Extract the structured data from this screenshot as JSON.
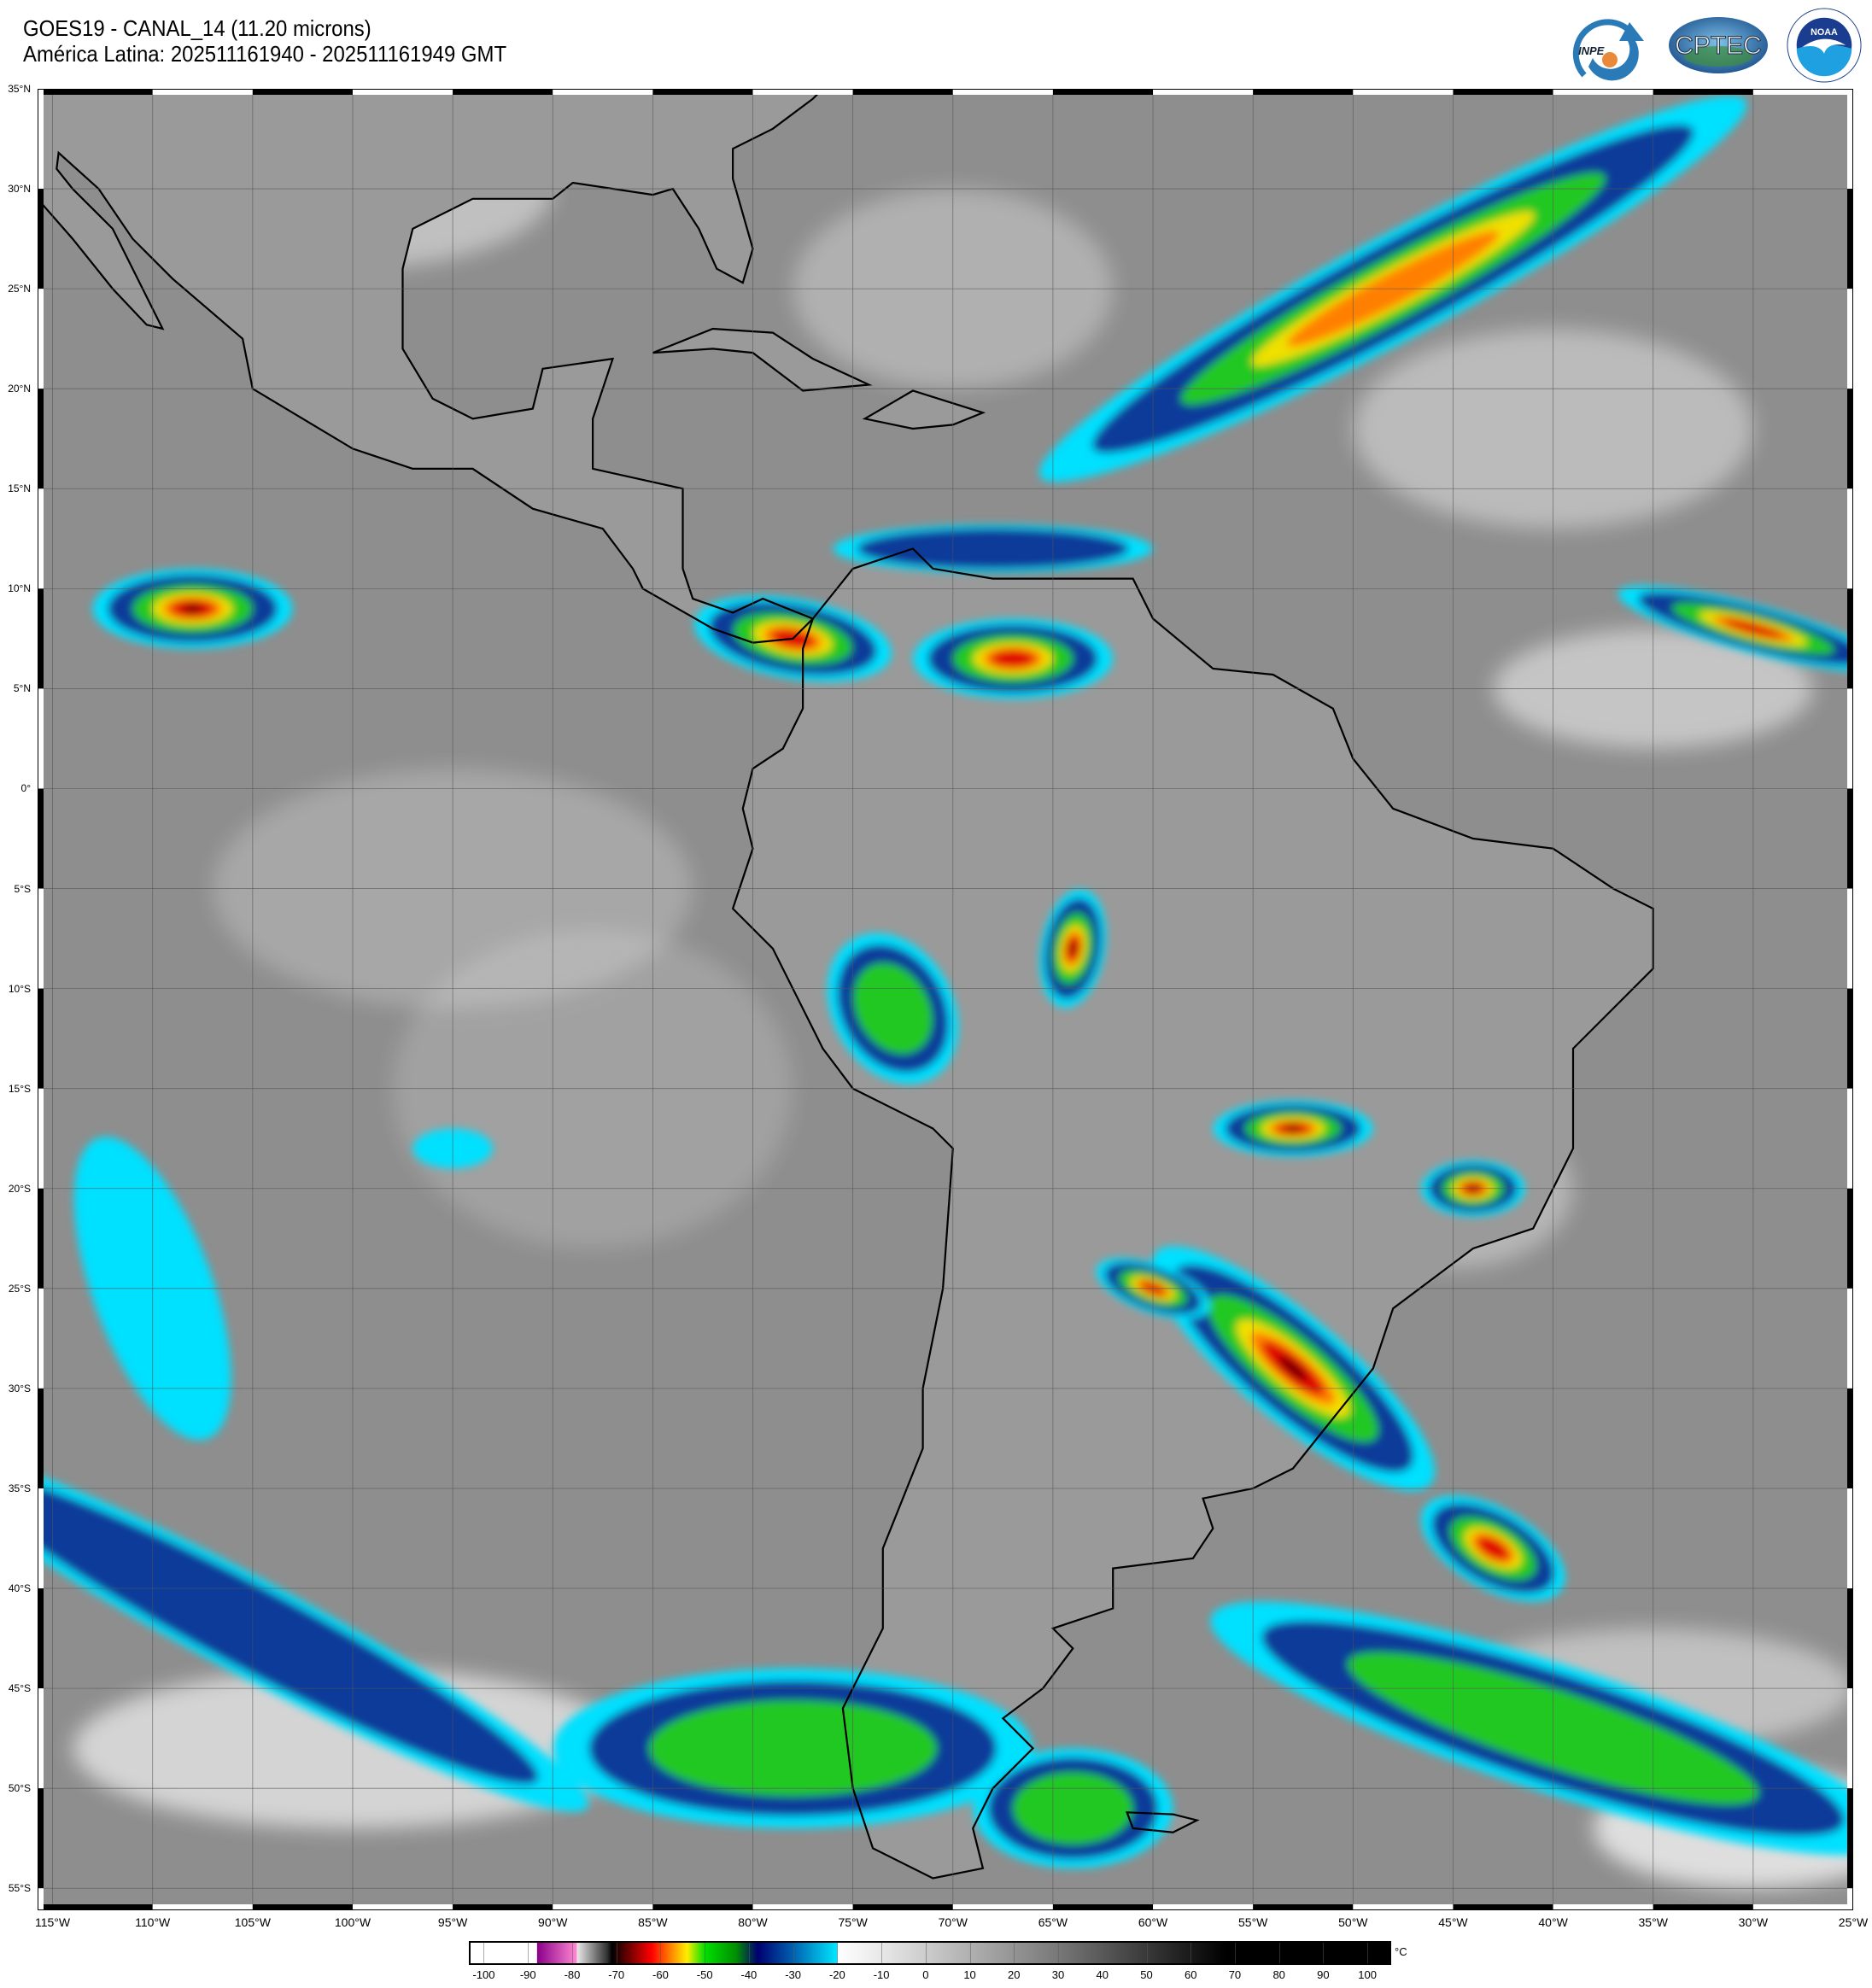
{
  "header": {
    "title": "GOES19 - CANAL_14 (11.20 microns)",
    "subtitle": "América Latina: 202511161940 - 202511161949 GMT"
  },
  "logos": {
    "inpe": "INPE",
    "cptec": "CPTEC",
    "noaa": "NOAA",
    "noaa_ring": "NATIONAL OCEANIC AND ATMOSPHERIC ADMINISTRATION · U.S. DEPARTMENT OF COMMERCE"
  },
  "map": {
    "lat_labels": [
      "35°N",
      "30°N",
      "25°N",
      "20°N",
      "15°N",
      "10°N",
      "5°N",
      "0°",
      "5°S",
      "10°S",
      "15°S",
      "20°S",
      "25°S",
      "30°S",
      "35°S",
      "40°S",
      "45°S",
      "50°S",
      "55°S"
    ],
    "lat_values": [
      35,
      30,
      25,
      20,
      15,
      10,
      5,
      0,
      -5,
      -10,
      -15,
      -20,
      -25,
      -30,
      -35,
      -40,
      -45,
      -50,
      -55
    ],
    "lon_labels": [
      "115°W",
      "110°W",
      "105°W",
      "100°W",
      "95°W",
      "90°W",
      "85°W",
      "80°W",
      "75°W",
      "70°W",
      "65°W",
      "60°W",
      "55°W",
      "50°W",
      "45°W",
      "40°W",
      "35°W",
      "30°W",
      "25°W"
    ],
    "lon_values": [
      -115,
      -110,
      -105,
      -100,
      -95,
      -90,
      -85,
      -80,
      -75,
      -70,
      -65,
      -60,
      -55,
      -50,
      -45,
      -40,
      -35,
      -30,
      -25
    ],
    "background_color": "#8e8e8e"
  },
  "colorbar": {
    "unit": "°C",
    "ticks": [
      "-100",
      "-90",
      "-80",
      "-70",
      "-60",
      "-50",
      "-40",
      "-30",
      "-20",
      "-10",
      "0",
      "10",
      "20",
      "30",
      "40",
      "50",
      "60",
      "70",
      "80",
      "90",
      "100"
    ],
    "tick_values": [
      -100,
      -90,
      -80,
      -70,
      -60,
      -50,
      -40,
      -30,
      -20,
      -10,
      0,
      10,
      20,
      30,
      40,
      50,
      60,
      70,
      80,
      90,
      100
    ],
    "range": [
      -103,
      105
    ],
    "stops": [
      {
        "t": -103,
        "c": "#ffffff"
      },
      {
        "t": -88,
        "c": "#ffffff"
      },
      {
        "t": -87.9,
        "c": "#8b008b"
      },
      {
        "t": -79,
        "c": "#ff88d0"
      },
      {
        "t": -78.9,
        "c": "#e8e8e8"
      },
      {
        "t": -72,
        "c": "#303030"
      },
      {
        "t": -71,
        "c": "#000000"
      },
      {
        "t": -66,
        "c": "#900000"
      },
      {
        "t": -62,
        "c": "#ff0000"
      },
      {
        "t": -57,
        "c": "#ff9900"
      },
      {
        "t": -54,
        "c": "#ffee00"
      },
      {
        "t": -50,
        "c": "#00e000"
      },
      {
        "t": -43,
        "c": "#009000"
      },
      {
        "t": -38,
        "c": "#000070"
      },
      {
        "t": -30,
        "c": "#0060b0"
      },
      {
        "t": -20,
        "c": "#00e8ff"
      },
      {
        "t": -19.9,
        "c": "#ffffff"
      },
      {
        "t": -10,
        "c": "#e8e8e8"
      },
      {
        "t": 30,
        "c": "#787878"
      },
      {
        "t": 68,
        "c": "#000000"
      },
      {
        "t": 105,
        "c": "#000000"
      }
    ]
  }
}
